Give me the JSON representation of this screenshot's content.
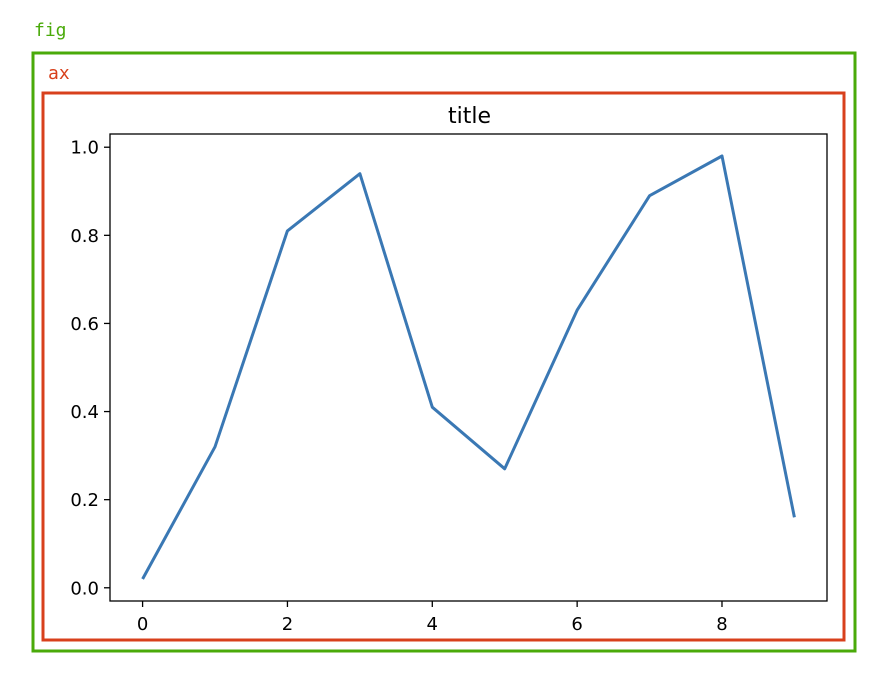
{
  "labels": {
    "fig": "fig",
    "ax": "ax"
  },
  "colors": {
    "fig": "#4aaa0a",
    "ax": "#d8401c",
    "line": "#3a78b4",
    "axes": "#000000"
  },
  "chart_data": {
    "type": "line",
    "title": "title",
    "xlabel": "",
    "ylabel": "",
    "xlim": [
      -0.45,
      9.45
    ],
    "ylim": [
      -0.03,
      1.03
    ],
    "xticks": [
      0,
      2,
      4,
      6,
      8
    ],
    "xtick_labels": [
      "0",
      "2",
      "4",
      "6",
      "8"
    ],
    "yticks": [
      0.0,
      0.2,
      0.4,
      0.6,
      0.8,
      1.0
    ],
    "ytick_labels": [
      "0.0",
      "0.2",
      "0.4",
      "0.6",
      "0.8",
      "1.0"
    ],
    "grid": false,
    "series": [
      {
        "x": [
          0,
          1,
          2,
          3,
          4,
          5,
          6,
          7,
          8,
          9
        ],
        "y": [
          0.02,
          0.32,
          0.81,
          0.94,
          0.41,
          0.27,
          0.63,
          0.89,
          0.98,
          0.16
        ]
      }
    ]
  }
}
